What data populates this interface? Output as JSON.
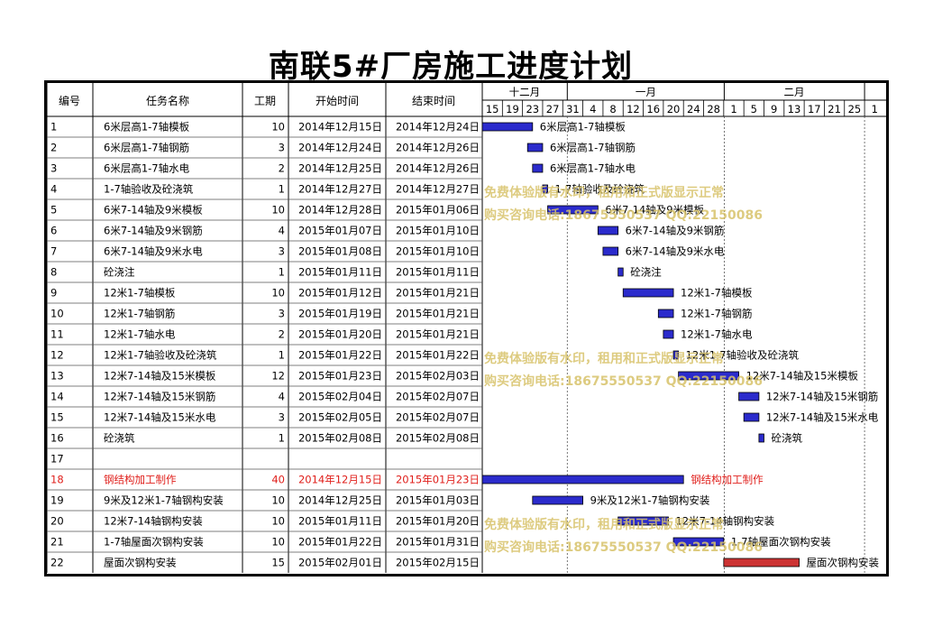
{
  "title": "南联5#厂房施工进度计划",
  "columns": [
    "编号",
    "任务名称",
    "工期",
    "开始时间",
    "结束时间"
  ],
  "months": [
    "十二月",
    "一月",
    "二月"
  ],
  "day_ticks": [
    "15",
    "19",
    "23",
    "27",
    "31",
    "4",
    "8",
    "12",
    "16",
    "20",
    "24",
    "28",
    "1",
    "5",
    "9",
    "13",
    "17",
    "21",
    "25",
    "1"
  ],
  "colors": {
    "bar_blue": "#2b2bcc",
    "bar_red": "#cc3333",
    "highlight_text": "#e0201c"
  },
  "watermark": {
    "line1": "免费体验版有水印，租用和正式版显示正常",
    "line2": "购买咨询电话:18675550537 QQ:22150086"
  },
  "chart_data": {
    "type": "gantt",
    "x_axis_start": "2014-12-15",
    "tasks": [
      {
        "id": "1",
        "name": "6米层高1-7轴模板",
        "duration": "10",
        "start": "2014年12月15日",
        "end": "2014年12月24日",
        "s": "2014-12-15",
        "e": "2014-12-24",
        "color": "blue"
      },
      {
        "id": "2",
        "name": "6米层高1-7轴钢筋",
        "duration": "3",
        "start": "2014年12月24日",
        "end": "2014年12月26日",
        "s": "2014-12-24",
        "e": "2014-12-26",
        "color": "blue"
      },
      {
        "id": "3",
        "name": "6米层高1-7轴水电",
        "duration": "2",
        "start": "2014年12月25日",
        "end": "2014年12月26日",
        "s": "2014-12-25",
        "e": "2014-12-26",
        "color": "blue"
      },
      {
        "id": "4",
        "name": "1-7轴验收及砼浇筑",
        "duration": "1",
        "start": "2014年12月27日",
        "end": "2014年12月27日",
        "s": "2014-12-27",
        "e": "2014-12-27",
        "color": "blue"
      },
      {
        "id": "5",
        "name": "6米7-14轴及9米模板",
        "duration": "10",
        "start": "2014年12月28日",
        "end": "2015年01月06日",
        "s": "2014-12-28",
        "e": "2015-01-06",
        "color": "blue"
      },
      {
        "id": "6",
        "name": "6米7-14轴及9米钢筋",
        "duration": "4",
        "start": "2015年01月07日",
        "end": "2015年01月10日",
        "s": "2015-01-07",
        "e": "2015-01-10",
        "color": "blue"
      },
      {
        "id": "7",
        "name": "6米7-14轴及9米水电",
        "duration": "3",
        "start": "2015年01月08日",
        "end": "2015年01月10日",
        "s": "2015-01-08",
        "e": "2015-01-10",
        "color": "blue"
      },
      {
        "id": "8",
        "name": "砼浇注",
        "duration": "1",
        "start": "2015年01月11日",
        "end": "2015年01月11日",
        "s": "2015-01-11",
        "e": "2015-01-11",
        "color": "blue"
      },
      {
        "id": "9",
        "name": "12米1-7轴模板",
        "duration": "10",
        "start": "2015年01月12日",
        "end": "2015年01月21日",
        "s": "2015-01-12",
        "e": "2015-01-21",
        "color": "blue"
      },
      {
        "id": "10",
        "name": "12米1-7轴钢筋",
        "duration": "3",
        "start": "2015年01月19日",
        "end": "2015年01月21日",
        "s": "2015-01-19",
        "e": "2015-01-21",
        "color": "blue"
      },
      {
        "id": "11",
        "name": "12米1-7轴水电",
        "duration": "2",
        "start": "2015年01月20日",
        "end": "2015年01月21日",
        "s": "2015-01-20",
        "e": "2015-01-21",
        "color": "blue"
      },
      {
        "id": "12",
        "name": "12米1-7轴验收及砼浇筑",
        "duration": "1",
        "start": "2015年01月22日",
        "end": "2015年01月22日",
        "s": "2015-01-22",
        "e": "2015-01-22",
        "color": "blue"
      },
      {
        "id": "13",
        "name": "12米7-14轴及15米模板",
        "duration": "12",
        "start": "2015年01月23日",
        "end": "2015年02月03日",
        "s": "2015-01-23",
        "e": "2015-02-03",
        "color": "blue"
      },
      {
        "id": "14",
        "name": "12米7-14轴及15米钢筋",
        "duration": "4",
        "start": "2015年02月04日",
        "end": "2015年02月07日",
        "s": "2015-02-04",
        "e": "2015-02-07",
        "color": "blue"
      },
      {
        "id": "15",
        "name": "12米7-14轴及15米水电",
        "duration": "3",
        "start": "2015年02月05日",
        "end": "2015年02月07日",
        "s": "2015-02-05",
        "e": "2015-02-07",
        "color": "blue"
      },
      {
        "id": "16",
        "name": "砼浇筑",
        "duration": "1",
        "start": "2015年02月08日",
        "end": "2015年02月08日",
        "s": "2015-02-08",
        "e": "2015-02-08",
        "color": "blue"
      },
      {
        "id": "17",
        "name": "",
        "duration": "",
        "start": "",
        "end": "",
        "s": "",
        "e": "",
        "color": ""
      },
      {
        "id": "18",
        "name": "钢结构加工制作",
        "duration": "40",
        "start": "2014年12月15日",
        "end": "2015年01月23日",
        "s": "2014-12-15",
        "e": "2015-01-23",
        "color": "blue",
        "highlight": true
      },
      {
        "id": "19",
        "name": "9米及12米1-7轴钢构安装",
        "duration": "10",
        "start": "2014年12月25日",
        "end": "2015年01月03日",
        "s": "2014-12-25",
        "e": "2015-01-03",
        "color": "blue"
      },
      {
        "id": "20",
        "name": "12米7-14轴钢构安装",
        "duration": "10",
        "start": "2015年01月11日",
        "end": "2015年01月20日",
        "s": "2015-01-11",
        "e": "2015-01-20",
        "color": "blue"
      },
      {
        "id": "21",
        "name": "1-7轴屋面次钢构安装",
        "duration": "10",
        "start": "2015年01月22日",
        "end": "2015年01月31日",
        "s": "2015-01-22",
        "e": "2015-01-31",
        "color": "blue"
      },
      {
        "id": "22",
        "name": "屋面次钢构安装",
        "duration": "15",
        "start": "2015年02月01日",
        "end": "2015年02月15日",
        "s": "2015-02-01",
        "e": "2015-02-15",
        "color": "red"
      }
    ]
  }
}
